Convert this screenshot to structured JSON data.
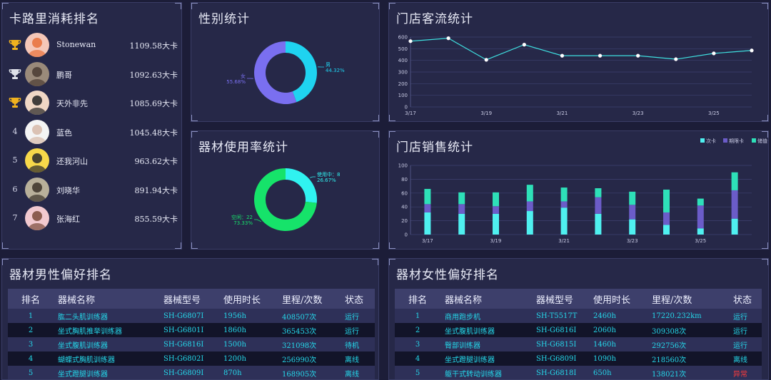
{
  "panels": {
    "calorie": {
      "title": "卡路里消耗排名"
    },
    "gender": {
      "title": "性别统计"
    },
    "equipment_usage": {
      "title": "器材使用率统计"
    },
    "traffic": {
      "title": "门店客流统计"
    },
    "sales": {
      "title": "门店销售统计"
    },
    "male_pref": {
      "title": "器材男性偏好排名"
    },
    "female_pref": {
      "title": "器材女性偏好排名"
    }
  },
  "ranking": [
    {
      "rank": "1",
      "name": "Stonewan",
      "value": "1109.58大卡",
      "trophy": "gold-trophy"
    },
    {
      "rank": "2",
      "name": "鹏哥",
      "value": "1092.63大卡",
      "trophy": "silver-trophy"
    },
    {
      "rank": "3",
      "name": "天外非先",
      "value": "1085.69大卡",
      "trophy": "bronze-trophy"
    },
    {
      "rank": "4",
      "name": "蓝色",
      "value": "1045.48大卡"
    },
    {
      "rank": "5",
      "name": "还我河山",
      "value": "963.62大卡"
    },
    {
      "rank": "6",
      "name": "刘晓华",
      "value": "891.94大卡"
    },
    {
      "rank": "7",
      "name": "张海红",
      "value": "855.59大卡"
    }
  ],
  "colors": {
    "cyan": "#1fd3f0",
    "purple": "#7a6ff0",
    "green": "#16e36a",
    "aqua": "#30f2f0",
    "bar_cyan": "#4ff0f0",
    "bar_purple": "#6b5cc8",
    "bar_teal": "#2ee0b8",
    "line": "#3fe0e0",
    "warn": "#ff3b3b"
  },
  "chart_data": [
    {
      "type": "pie",
      "title": "性别统计",
      "slices": [
        {
          "label": "男",
          "value": 44.32,
          "display": "44.32%",
          "color": "#1fd3f0"
        },
        {
          "label": "女",
          "value": 55.68,
          "display": "55.68%",
          "color": "#7a6ff0"
        }
      ]
    },
    {
      "type": "pie",
      "title": "器材使用率统计",
      "slices": [
        {
          "label": "使用中：8",
          "value": 26.67,
          "display": "26.67%",
          "color": "#30f2f0"
        },
        {
          "label": "空闲：22",
          "value": 73.33,
          "display": "73.33%",
          "color": "#16e36a"
        }
      ]
    },
    {
      "type": "line",
      "title": "门店客流统计",
      "x": [
        "3/17",
        "3/18",
        "3/19",
        "3/20",
        "3/21",
        "3/22",
        "3/23",
        "3/24",
        "3/25",
        "3/26"
      ],
      "x_tick_labels": [
        "3/17",
        "3/19",
        "3/21",
        "3/23",
        "3/25"
      ],
      "values": [
        565,
        590,
        405,
        535,
        440,
        440,
        440,
        410,
        460,
        485
      ],
      "ylim": [
        0,
        600
      ],
      "yticks": [
        0,
        100,
        200,
        300,
        400,
        500,
        600
      ],
      "grid": true
    },
    {
      "type": "bar",
      "stacked": true,
      "title": "门店销售统计",
      "categories": [
        "3/17",
        "3/18",
        "3/19",
        "3/20",
        "3/21",
        "3/22",
        "3/23",
        "3/24",
        "3/25",
        "3/26"
      ],
      "x_tick_labels": [
        "3/17",
        "3/19",
        "3/21",
        "3/23",
        "3/25"
      ],
      "series": [
        {
          "name": "次卡",
          "values": [
            32,
            30,
            30,
            34,
            39,
            30,
            22,
            14,
            9,
            23
          ],
          "color": "#4ff0f0"
        },
        {
          "name": "期限卡",
          "values": [
            12,
            14,
            11,
            14,
            9,
            24,
            21,
            18,
            33,
            41
          ],
          "color": "#6b5cc8"
        },
        {
          "name": "储值卡",
          "values": [
            22,
            17,
            20,
            24,
            20,
            13,
            19,
            33,
            10,
            26
          ],
          "color": "#2ee0b8"
        }
      ],
      "ylim": [
        0,
        100
      ],
      "yticks": [
        0,
        20,
        40,
        60,
        80,
        100
      ],
      "legend": "top-right",
      "grid": true
    }
  ],
  "male_table": {
    "headers": [
      "排名",
      "器械名称",
      "器械型号",
      "使用时长",
      "里程/次数",
      "状态"
    ],
    "rows": [
      [
        "1",
        "肱二头肌训练器",
        "SH-G6807I",
        "1956h",
        "408507次",
        "运行"
      ],
      [
        "2",
        "坐式胸肌推举训练器",
        "SH-G6801I",
        "1860h",
        "365453次",
        "运行"
      ],
      [
        "3",
        "坐式腹肌训练器",
        "SH-G6816I",
        "1500h",
        "321098次",
        "待机"
      ],
      [
        "4",
        "蝴蝶式胸肌训练器",
        "SH-G6802I",
        "1200h",
        "256990次",
        "离线"
      ],
      [
        "5",
        "坐式蹬腿训练器",
        "SH-G6809I",
        "870h",
        "168905次",
        "离线"
      ]
    ]
  },
  "female_table": {
    "headers": [
      "排名",
      "器械名称",
      "器械型号",
      "使用时长",
      "里程/次数",
      "状态"
    ],
    "rows": [
      [
        "1",
        "商用跑步机",
        "SH-T5517T",
        "2460h",
        "17220.232km",
        "运行"
      ],
      [
        "2",
        "坐式腹肌训练器",
        "SH-G6816I",
        "2060h",
        "309308次",
        "运行"
      ],
      [
        "3",
        "臀部训练器",
        "SH-G6815I",
        "1460h",
        "292756次",
        "运行"
      ],
      [
        "4",
        "坐式蹬腿训练器",
        "SH-G6809I",
        "1090h",
        "218560次",
        "离线"
      ],
      [
        "5",
        "躯干式转动训练器",
        "SH-G6818I",
        "650h",
        "138021次",
        "异常"
      ]
    ]
  }
}
